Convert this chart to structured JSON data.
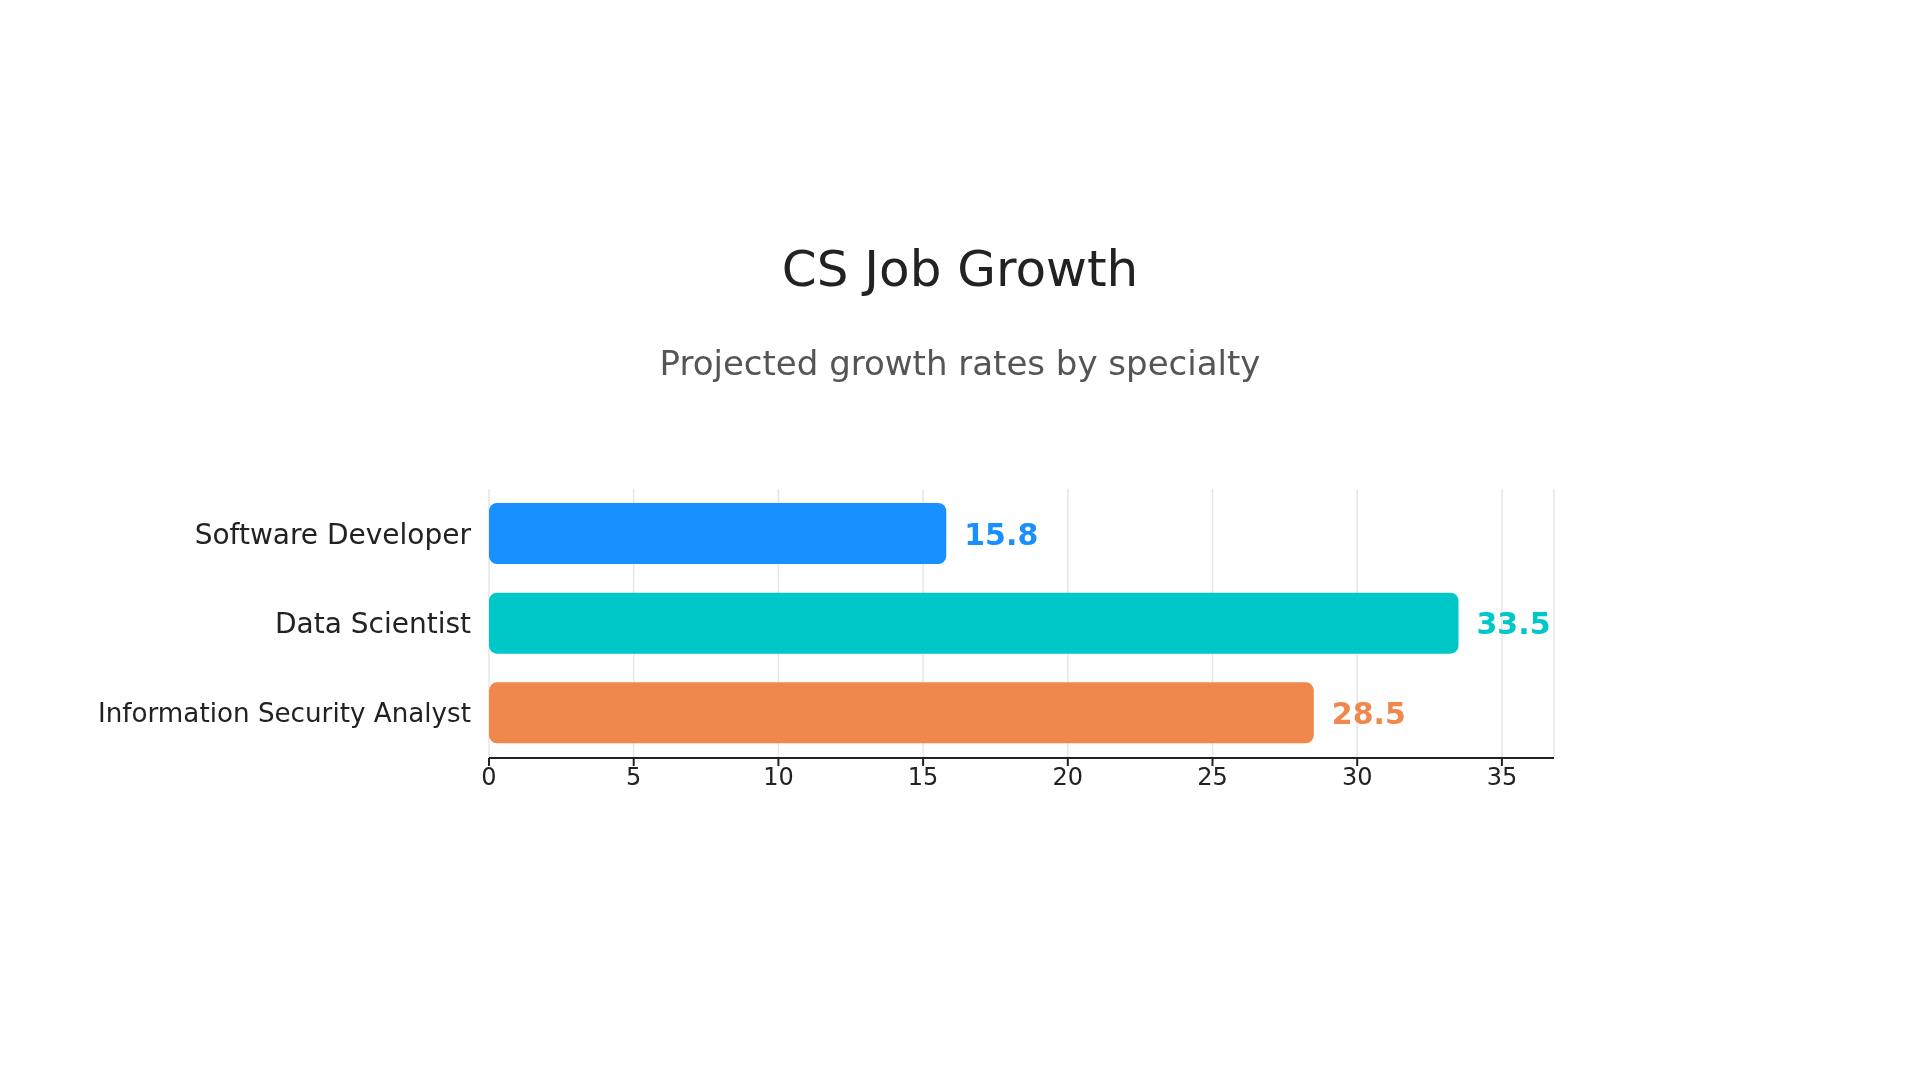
{
  "chart_data": {
    "type": "bar",
    "orientation": "horizontal",
    "title": "CS Job Growth",
    "subtitle": "Projected growth rates by specialty",
    "categories": [
      "Software Developer",
      "Data Scientist",
      "Information Security Analyst"
    ],
    "values": [
      15.8,
      33.5,
      28.5
    ],
    "colors": [
      "#1890ff",
      "#00c8c8",
      "#f0884e"
    ],
    "xlim": [
      0,
      36.8
    ],
    "xticks": [
      0,
      5,
      10,
      15,
      20,
      25,
      30,
      35
    ],
    "grid": "x",
    "data_labels": true
  }
}
